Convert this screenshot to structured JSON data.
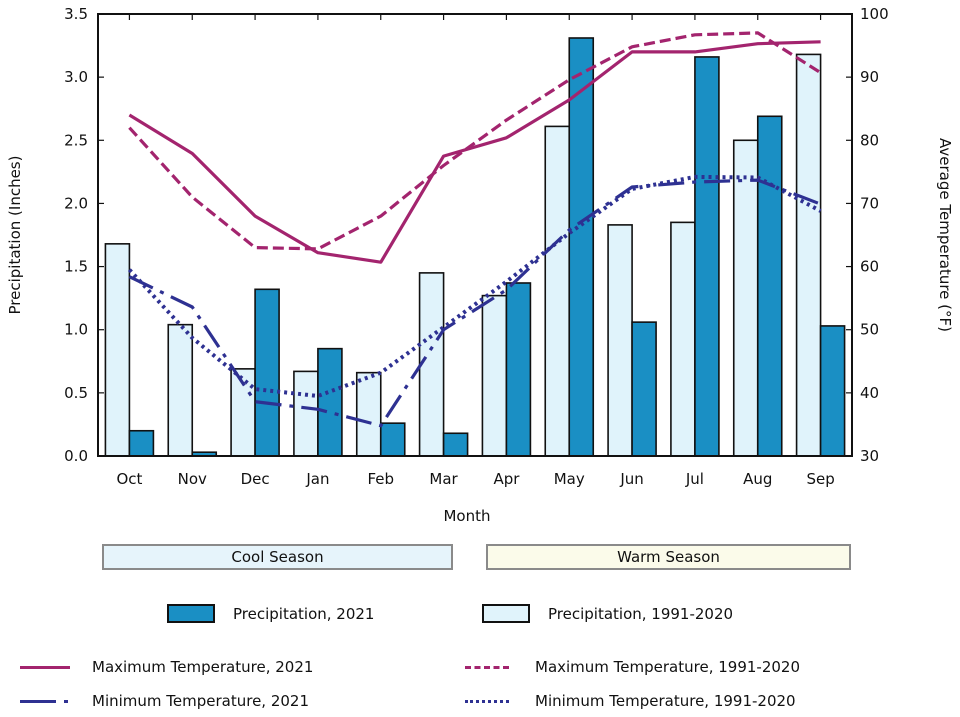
{
  "chart_data": {
    "type": "bar",
    "title": "",
    "xlabel": "Month",
    "ylabel": "Precipitation (Inches)",
    "y2label": "Average Temperature (°F)",
    "categories": [
      "Oct",
      "Nov",
      "Dec",
      "Jan",
      "Feb",
      "Mar",
      "Apr",
      "May",
      "Jun",
      "Jul",
      "Aug",
      "Sep"
    ],
    "ylim": [
      0,
      3.5
    ],
    "y2lim": [
      30,
      100
    ],
    "yticks": [
      "0.0",
      "0.5",
      "1.0",
      "1.5",
      "2.0",
      "2.5",
      "3.0",
      "3.5"
    ],
    "y2ticks": [
      "30",
      "40",
      "50",
      "60",
      "70",
      "80",
      "90",
      "100"
    ],
    "grid": false,
    "series": [
      {
        "name": "Precipitation, 2021",
        "kind": "bar",
        "axis": "left",
        "color": "#1a8fc4",
        "values": [
          0.2,
          0.03,
          1.32,
          0.85,
          0.26,
          0.18,
          1.37,
          3.31,
          1.06,
          3.16,
          2.69,
          1.03
        ]
      },
      {
        "name": "Precipitation, 1991-2020",
        "kind": "bar",
        "axis": "left",
        "color": "#e0f3fb",
        "values": [
          1.68,
          1.04,
          0.69,
          0.67,
          0.66,
          1.45,
          1.27,
          2.61,
          1.83,
          1.85,
          2.5,
          3.18
        ]
      },
      {
        "name": "Maximum Temperature, 2021",
        "kind": "line",
        "style": "solid",
        "axis": "right",
        "color": "#a3246e",
        "values": [
          84.0,
          77.9,
          68.0,
          62.2,
          60.7,
          77.5,
          80.4,
          86.4,
          94.0,
          94.0,
          95.3,
          95.6
        ]
      },
      {
        "name": "Maximum Temperature, 1991-2020",
        "kind": "line",
        "style": "dashed",
        "axis": "right",
        "color": "#a3246e",
        "values": [
          82.0,
          71.0,
          63.0,
          62.8,
          68.0,
          76.0,
          83.2,
          89.6,
          94.8,
          96.7,
          97.0,
          90.7
        ]
      },
      {
        "name": "Minimum Temperature, 2021",
        "kind": "line",
        "style": "longdash",
        "axis": "right",
        "color": "#2e3192",
        "values": [
          58.4,
          53.6,
          38.6,
          37.4,
          34.8,
          50.0,
          56.3,
          65.8,
          72.6,
          73.4,
          73.7,
          69.9
        ]
      },
      {
        "name": "Minimum Temperature, 1991-2020",
        "kind": "line",
        "style": "dotted",
        "axis": "right",
        "color": "#2e3192",
        "values": [
          59.5,
          48.7,
          40.6,
          39.5,
          43.2,
          50.4,
          57.6,
          65.3,
          72.3,
          74.2,
          74.1,
          68.8
        ]
      }
    ],
    "seasons": [
      {
        "label": "Cool Season",
        "months": [
          "Oct",
          "Nov",
          "Dec",
          "Jan",
          "Feb",
          "Mar"
        ],
        "color": "#e6f4fb"
      },
      {
        "label": "Warm Season",
        "months": [
          "Apr",
          "May",
          "Jun",
          "Jul",
          "Aug",
          "Sep"
        ],
        "color": "#fbfbea"
      }
    ],
    "legend": {
      "placement": "bottom",
      "items": [
        {
          "label": "Precipitation, 2021",
          "type": "bar-2021"
        },
        {
          "label": "Precipitation, 1991-2020",
          "type": "bar-normal"
        },
        {
          "label": "Maximum Temperature, 2021",
          "type": "line-max-2021"
        },
        {
          "label": "Maximum Temperature, 1991-2020",
          "type": "line-max-normal"
        },
        {
          "label": "Minimum Temperature, 2021",
          "type": "line-min-2021"
        },
        {
          "label": "Minimum Temperature, 1991-2020",
          "type": "line-min-normal"
        }
      ]
    }
  }
}
